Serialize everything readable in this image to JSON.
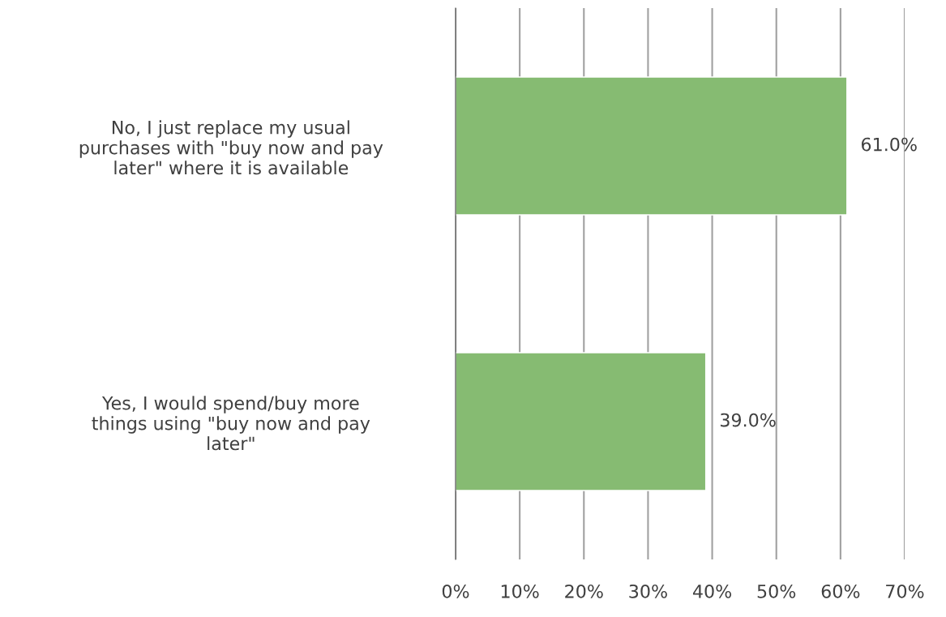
{
  "chart_data": {
    "type": "bar",
    "orientation": "horizontal",
    "categories": [
      "No, I just replace my usual\npurchases with \"buy now and pay\nlater\" where it is available",
      "Yes, I would spend/buy more\nthings using \"buy now and pay\nlater\""
    ],
    "values": [
      61.0,
      39.0
    ],
    "value_labels": [
      "61.0%",
      "39.0%"
    ],
    "color": "#86bb72",
    "xlim": [
      0,
      70
    ],
    "xticks": [
      {
        "value": 0,
        "label": "0%"
      },
      {
        "value": 10,
        "label": "10%"
      },
      {
        "value": 20,
        "label": "20%"
      },
      {
        "value": 30,
        "label": "30%"
      },
      {
        "value": 40,
        "label": "40%"
      },
      {
        "value": 50,
        "label": "50%"
      },
      {
        "value": 60,
        "label": "60%"
      },
      {
        "value": 70,
        "label": "70%"
      }
    ],
    "grid": "x",
    "legend": false
  }
}
